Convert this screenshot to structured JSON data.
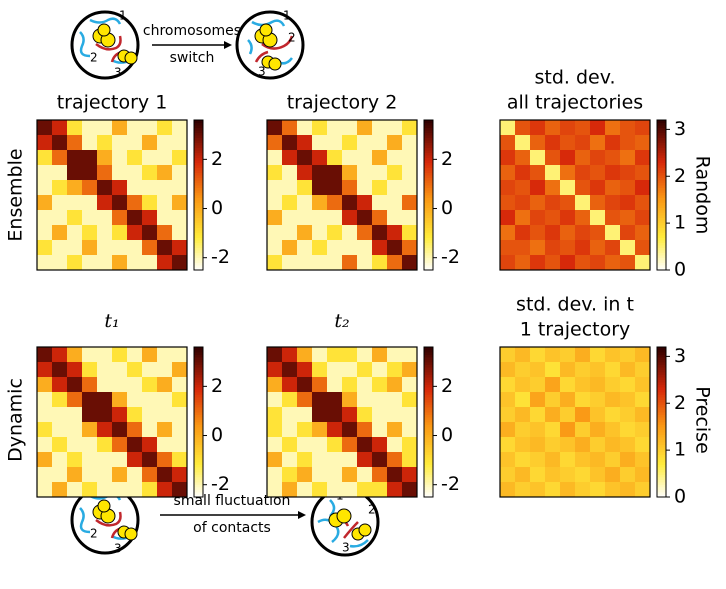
{
  "figure": {
    "row_labels": [
      "Ensemble",
      "Dynamic"
    ],
    "right_labels": [
      "Random",
      "Precise"
    ],
    "top_arrow": [
      "chromosomes",
      "switch"
    ],
    "bottom_arrow": [
      "small fluctuation",
      "of contacts"
    ],
    "schematic_numbers": [
      "1",
      "2",
      "3"
    ]
  },
  "chart_data": [
    {
      "type": "heatmap",
      "title": [
        "trajectory 1"
      ],
      "zlim": [
        -2.5,
        3.6
      ],
      "cticks": [
        -2,
        0,
        2
      ],
      "values": [
        [
          3,
          2,
          -1,
          -2,
          -2,
          0,
          -2,
          -2,
          -1,
          -2
        ],
        [
          2,
          3,
          1,
          -2,
          -1,
          -2,
          -2,
          0,
          -2,
          -2
        ],
        [
          -1,
          1,
          3,
          3,
          0,
          -2,
          -1,
          -2,
          -2,
          -1
        ],
        [
          -2,
          -2,
          3,
          3,
          1,
          -2,
          -2,
          -1,
          0,
          -2
        ],
        [
          -2,
          -1,
          0,
          1,
          3,
          2,
          -2,
          -2,
          -2,
          -2
        ],
        [
          0,
          -2,
          -2,
          -2,
          2,
          3,
          1,
          -1,
          -2,
          0
        ],
        [
          -2,
          -2,
          -1,
          -2,
          -2,
          1,
          3,
          2,
          -2,
          -2
        ],
        [
          -2,
          0,
          -2,
          -1,
          -2,
          -1,
          2,
          3,
          1,
          -2
        ],
        [
          -1,
          -2,
          -2,
          0,
          -2,
          -2,
          -2,
          1,
          3,
          2
        ],
        [
          -2,
          -2,
          -1,
          -2,
          -2,
          0,
          -2,
          -2,
          2,
          3
        ]
      ]
    },
    {
      "type": "heatmap",
      "title": [
        "trajectory 2"
      ],
      "zlim": [
        -2.5,
        3.6
      ],
      "cticks": [
        -2,
        0,
        2
      ],
      "values": [
        [
          3,
          1,
          -2,
          -1,
          -2,
          -2,
          0,
          -2,
          -2,
          -1
        ],
        [
          1,
          3,
          2,
          -2,
          -2,
          -1,
          -2,
          -2,
          0,
          -2
        ],
        [
          -2,
          2,
          3,
          2,
          -1,
          -2,
          -2,
          0,
          -2,
          -2
        ],
        [
          -1,
          -2,
          2,
          3,
          3,
          0,
          -2,
          -2,
          -1,
          -2
        ],
        [
          -2,
          -2,
          -1,
          3,
          3,
          1,
          -2,
          -1,
          -2,
          -2
        ],
        [
          -2,
          -1,
          -2,
          0,
          1,
          3,
          2,
          -2,
          -2,
          1
        ],
        [
          0,
          -2,
          -2,
          -2,
          -2,
          2,
          3,
          1,
          -2,
          -2
        ],
        [
          -2,
          -2,
          0,
          -2,
          -1,
          -2,
          1,
          3,
          2,
          -1
        ],
        [
          -2,
          0,
          -2,
          -1,
          -2,
          -2,
          -2,
          2,
          3,
          1
        ],
        [
          -1,
          -2,
          -2,
          -2,
          -2,
          1,
          -2,
          -1,
          1,
          3
        ]
      ]
    },
    {
      "type": "heatmap",
      "title": [
        "std. dev.",
        "all trajectories"
      ],
      "zlim": [
        0,
        3.2
      ],
      "cticks": [
        0,
        1,
        2,
        3
      ],
      "values": [
        [
          0.5,
          2,
          2.2,
          1.9,
          2.1,
          2,
          2.3,
          1.8,
          2,
          2.1
        ],
        [
          2,
          0.5,
          1.9,
          2.2,
          2,
          2.1,
          1.8,
          2.2,
          2,
          1.9
        ],
        [
          2.2,
          1.9,
          0.5,
          2,
          2.3,
          1.9,
          2.1,
          2,
          1.8,
          2.2
        ],
        [
          1.9,
          2.2,
          2,
          0.5,
          1.8,
          2.1,
          2,
          2.2,
          2.1,
          2
        ],
        [
          2.1,
          2,
          2.3,
          1.8,
          0.5,
          2,
          2.2,
          1.9,
          2,
          2.3
        ],
        [
          2,
          2.1,
          1.9,
          2.1,
          2,
          0.5,
          1.9,
          2.1,
          2.2,
          2
        ],
        [
          2.3,
          1.8,
          2.1,
          2,
          2.2,
          1.9,
          0.5,
          2,
          1.9,
          2.1
        ],
        [
          1.8,
          2.2,
          2,
          2.2,
          1.9,
          2.1,
          2,
          0.5,
          2.1,
          1.9
        ],
        [
          2,
          2,
          1.8,
          2.1,
          2,
          2.2,
          1.9,
          2.1,
          0.5,
          2
        ],
        [
          2.1,
          1.9,
          2.2,
          2,
          2.3,
          2,
          2.1,
          1.9,
          2,
          0.5
        ]
      ]
    },
    {
      "type": "heatmap",
      "title": [
        "t₁"
      ],
      "zlim": [
        -2.5,
        3.6
      ],
      "cticks": [
        -2,
        0,
        2
      ],
      "values": [
        [
          3,
          2,
          0,
          -2,
          -2,
          -1,
          -2,
          0,
          -2,
          -2
        ],
        [
          2,
          3,
          2,
          -1,
          -2,
          -2,
          -1,
          -2,
          -2,
          0
        ],
        [
          0,
          2,
          3,
          1,
          -2,
          -2,
          -2,
          -1,
          0,
          -2
        ],
        [
          -2,
          -1,
          1,
          3,
          3,
          0,
          -2,
          -2,
          -2,
          -1
        ],
        [
          -2,
          -2,
          -2,
          3,
          3,
          2,
          -1,
          -2,
          -2,
          -2
        ],
        [
          -1,
          -2,
          -2,
          0,
          2,
          3,
          1,
          -2,
          0,
          -2
        ],
        [
          -2,
          -1,
          -2,
          -2,
          -1,
          1,
          3,
          2,
          -2,
          -2
        ],
        [
          0,
          -2,
          -1,
          -2,
          -2,
          -2,
          2,
          3,
          1,
          -1
        ],
        [
          -2,
          -2,
          0,
          -2,
          -2,
          0,
          -2,
          1,
          3,
          2
        ],
        [
          -2,
          0,
          -2,
          -1,
          -2,
          -2,
          -2,
          -1,
          2,
          3
        ]
      ]
    },
    {
      "type": "heatmap",
      "title": [
        "t₂"
      ],
      "zlim": [
        -2.5,
        3.6
      ],
      "cticks": [
        -2,
        0,
        2
      ],
      "values": [
        [
          3,
          2,
          0,
          -2,
          -1,
          -1,
          -2,
          0,
          -2,
          -2
        ],
        [
          2,
          3,
          2,
          -1,
          -2,
          -2,
          -1,
          -2,
          -1,
          0
        ],
        [
          0,
          2,
          3,
          1,
          -2,
          -1,
          -2,
          -1,
          0,
          -2
        ],
        [
          -2,
          -1,
          1,
          3,
          3,
          0,
          -2,
          -2,
          -2,
          -1
        ],
        [
          -1,
          -2,
          -2,
          3,
          3,
          2,
          -1,
          -2,
          -2,
          -2
        ],
        [
          -1,
          -2,
          -1,
          0,
          2,
          3,
          1,
          -2,
          0,
          -2
        ],
        [
          -2,
          -1,
          -2,
          -2,
          -1,
          1,
          3,
          2,
          -2,
          -1
        ],
        [
          0,
          -2,
          -1,
          -2,
          -2,
          -2,
          2,
          3,
          1,
          -1
        ],
        [
          -2,
          -1,
          0,
          -2,
          -2,
          0,
          -2,
          1,
          3,
          2
        ],
        [
          -2,
          0,
          -2,
          -1,
          -2,
          -2,
          -1,
          -1,
          2,
          3
        ]
      ]
    },
    {
      "type": "heatmap",
      "title": [
        "std. dev. in t",
        "1 trajectory"
      ],
      "zlim": [
        0,
        3.2
      ],
      "cticks": [
        0,
        1,
        2,
        3
      ],
      "values": [
        [
          1,
          1.2,
          0.9,
          1.1,
          1,
          1.3,
          0.9,
          1.1,
          1,
          1.2
        ],
        [
          1.2,
          1,
          1.1,
          0.8,
          1.2,
          1,
          1.1,
          0.9,
          1.2,
          1
        ],
        [
          0.9,
          1.1,
          1,
          1.4,
          0.9,
          1.1,
          1.2,
          1,
          0.9,
          1.1
        ],
        [
          1.1,
          0.8,
          1.4,
          1,
          1.3,
          0.9,
          1,
          1.2,
          1.1,
          0.9
        ],
        [
          1,
          1.2,
          0.9,
          1.3,
          1,
          1.5,
          1.1,
          0.9,
          1,
          1.2
        ],
        [
          1.3,
          1,
          1.1,
          0.9,
          1.5,
          1,
          1.3,
          1.1,
          0.9,
          1
        ],
        [
          0.9,
          1.1,
          1.2,
          1,
          1.1,
          1.3,
          1,
          1.2,
          1.1,
          0.9
        ],
        [
          1.1,
          0.9,
          1,
          1.2,
          0.9,
          1.1,
          1.2,
          1,
          1.3,
          1.1
        ],
        [
          1,
          1.2,
          0.9,
          1.1,
          1,
          0.9,
          1.1,
          1.3,
          1,
          1.2
        ],
        [
          1.2,
          1,
          1.1,
          0.9,
          1.2,
          1,
          0.9,
          1.1,
          1.2,
          1
        ]
      ]
    }
  ]
}
